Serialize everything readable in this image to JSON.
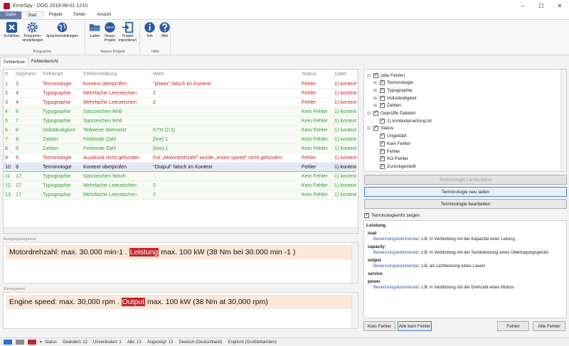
{
  "window": {
    "title": "ErrorSpy - DOG 2019-08-01 1210",
    "minimize": "–",
    "maximize": "☐",
    "close": "✕"
  },
  "menu": {
    "file": "Datei",
    "tabs": [
      "Start",
      "Projekt",
      "Fehler",
      "Ansicht"
    ]
  },
  "ribbon": {
    "groups": [
      {
        "label": "Programm",
        "buttons": [
          "Schließen",
          "Programm-\neinstellungen",
          "Spracheinstellungen"
        ]
      },
      {
        "label": "Neues Projekt",
        "buttons": [
          "Laden",
          "Neues\nProjekt",
          "Projekt\nimportieren"
        ]
      },
      {
        "label": "Hilfe",
        "buttons": [
          "Info",
          "Hilfe"
        ]
      }
    ],
    "new_badge": "NEW"
  },
  "doc_tabs": [
    "Fehlerliste",
    "Fehlerbericht"
  ],
  "grid": {
    "columns": [
      "#",
      "Segment",
      "Fehlerart",
      "Fehlermeldung",
      "Wert",
      "Status",
      "Datei"
    ],
    "rows": [
      {
        "n": "1",
        "seg": "3",
        "type": "Terminologie",
        "msg": "Kontext überprüfen",
        "val": "\"power\" falsch im Kontext",
        "status": "Fehler",
        "file": "1) kontextp",
        "kind": "err"
      },
      {
        "n": "2",
        "seg": "4",
        "type": "Typographie",
        "msg": "Mehrfache Leerzeichen",
        "val": "2",
        "status": "Fehler",
        "file": "1) kontextp",
        "kind": "err"
      },
      {
        "n": "3",
        "seg": "4",
        "type": "Typographie",
        "msg": "Mehrfache Leerzeichen",
        "val": "2",
        "status": "Fehler",
        "file": "1) kontextp",
        "kind": "err"
      },
      {
        "n": "4",
        "seg": "6",
        "type": "Typographie",
        "msg": "Satzzeichen fehlt",
        "val": "",
        "status": "Kein Fehler",
        "file": "1) kontextp",
        "kind": "ok"
      },
      {
        "n": "5",
        "seg": "7",
        "type": "Typographie",
        "msg": "Satzzeichen fehlt",
        "val": "",
        "status": "Kein Fehler",
        "file": "1) kontextp",
        "kind": "ok"
      },
      {
        "n": "6",
        "seg": "8",
        "type": "Vollständigkeit",
        "msg": "Teilweise übersetzt",
        "val": "67% (2:3)",
        "status": "Kein Fehler",
        "file": "1) kontextp",
        "kind": "ok"
      },
      {
        "n": "7",
        "seg": "9",
        "type": "Zahlen",
        "msg": "Fehlende Zahl",
        "val": "[line] 1",
        "status": "Kein Fehler",
        "file": "1) kontextp",
        "kind": "ok"
      },
      {
        "n": "8",
        "seg": "9",
        "type": "Zahlen",
        "msg": "Fehlende Zahl",
        "val": "[line] 1",
        "status": "Kein Fehler",
        "file": "1) kontextp",
        "kind": "ok"
      },
      {
        "n": "9",
        "seg": "9",
        "type": "Terminologie",
        "msg": "Ausdruck nicht gefunden",
        "val": "Für „Motordrehzahl\" wurde „motor speed\" nicht gefunden.",
        "status": "Fehler",
        "file": "1) kontextp",
        "kind": "err"
      },
      {
        "n": "10",
        "seg": "9",
        "type": "Terminologie",
        "msg": "Kontext überprüfen",
        "val": "\"Output\" falsch im Kontext",
        "status": "Fehler",
        "file": "1) kontextp",
        "kind": "sel"
      },
      {
        "n": "11",
        "seg": "17",
        "type": "Typographie",
        "msg": "Satzzeichen falsch",
        "val": "",
        "status": "Kein Fehler",
        "file": "1) kontextp",
        "kind": "ok"
      },
      {
        "n": "12",
        "seg": "17",
        "type": "Typographie",
        "msg": "Mehrfache Leerzeichen",
        "val": "2",
        "status": "Kein Fehler",
        "file": "1) kontextp",
        "kind": "ok"
      },
      {
        "n": "13",
        "seg": "17",
        "type": "Typographie",
        "msg": "Mehrfache Leerzeichen",
        "val": "2",
        "status": "Kein Fehler",
        "file": "1) kontextp",
        "kind": "ok"
      }
    ]
  },
  "source": {
    "label": "Ausgangssegment",
    "before": "Motordrehzahl: max. 30.000 min-1 . ",
    "highlight": "Leistung",
    "after": " max. 100 kW (38 Nm bei 30.000 min -1 )"
  },
  "target": {
    "label": "Zielsegment",
    "before": "Engine speed: max. 30,000 rpm . ",
    "highlight": "Output",
    "after": " max. 100 kW (38 Nm at 30,000 rpm)"
  },
  "tree": {
    "items": [
      {
        "label": "(alle Fehler)",
        "level": 0,
        "checked": true,
        "expander": "⊟"
      },
      {
        "label": "Terminologie",
        "level": 1,
        "checked": true,
        "expander": "⊞"
      },
      {
        "label": "Typographie",
        "level": 1,
        "checked": true,
        "expander": "⊞"
      },
      {
        "label": "Vollständigkeit",
        "level": 1,
        "checked": true,
        "expander": "⊞"
      },
      {
        "label": "Zahlen",
        "level": 1,
        "checked": true,
        "expander": "⊞"
      },
      {
        "label": "Geprüfte Dateien",
        "level": 0,
        "checked": true,
        "expander": "⊟"
      },
      {
        "label": "1) kontextpruefung.txt",
        "level": 1,
        "checked": true,
        "expander": ""
      },
      {
        "label": "Status",
        "level": 0,
        "checked": true,
        "expander": "⊟"
      },
      {
        "label": "Ungeklärt",
        "level": 1,
        "checked": true,
        "expander": ""
      },
      {
        "label": "Kein Fehler",
        "level": 1,
        "checked": true,
        "expander": ""
      },
      {
        "label": "Fehler",
        "level": 1,
        "checked": true,
        "expander": ""
      },
      {
        "label": "KO-Fehler",
        "level": 1,
        "checked": true,
        "expander": ""
      },
      {
        "label": "Zurückgestellt",
        "level": 1,
        "checked": true,
        "expander": ""
      }
    ]
  },
  "terminology_buttons": {
    "learn": "Terminologie Lernfunktion",
    "reload": "Terminologie neu laden",
    "edit": "Terminologie bearbeiten"
  },
  "info_toggle": {
    "label": "Terminologieinfo zeigen",
    "checked": true
  },
  "info": {
    "heading": "Leistung",
    "entries": [
      {
        "term": "load",
        "key": "Benennungskommentar",
        "text": ": z.B. in Verbindung mit der Kapazität einer Leitung"
      },
      {
        "term": "capacity",
        "key": "Benennungskommentar",
        "text": ": z.B. in Verbindung mit der Sendeleistung eines Übertragungsgeräts"
      },
      {
        "term": "output",
        "key": "Benennungskommentar",
        "text": ": z.B. als Lichtleistung eines Lasers"
      },
      {
        "term": "service",
        "key": "",
        "text": ""
      },
      {
        "term": "power",
        "key": "Benennungskommentar",
        "text": ": z.B. in Verbindung mit der Drehzahl eines Motors"
      }
    ]
  },
  "bottom_buttons": {
    "kein_fehler": "Kein Fehler",
    "alle_kein_fehler": "Alle kein Fehler",
    "fehler": "Fehler",
    "alle_fehler": "Alle Fehler"
  },
  "status": {
    "status_label": "Status",
    "changed": "Geändert: 12",
    "unchanged": "Unverändert: 1",
    "all": "Alle: 13",
    "shown": "Angezeigt: 13",
    "source_lang": "Deutsch (Deutschland)",
    "target_lang": "Englisch (Großbritannien)",
    "colors": [
      "#2a6fd1",
      "#8a8a8a",
      "#c0262a"
    ]
  },
  "colors": {
    "error": "#c0262a",
    "ok": "#2f9e3a",
    "highlight": "#c0262a",
    "segment_bg": "#fbe8d8",
    "file_tab": "#6b7fa6"
  }
}
